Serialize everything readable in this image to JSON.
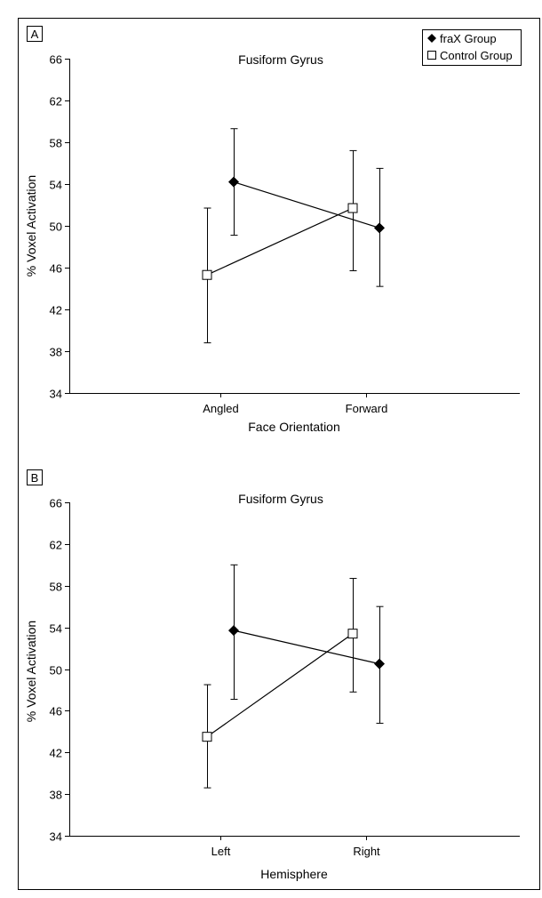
{
  "legend": {
    "placement": "top-right",
    "entries": [
      {
        "label": "fraX Group",
        "marker": "filled-diamond"
      },
      {
        "label": "Control Group",
        "marker": "open-square"
      }
    ]
  },
  "chart_data": [
    {
      "type": "line",
      "panel_label": "A",
      "title": "Fusiform Gyrus",
      "xlabel": "Face Orientation",
      "ylabel": "% Voxel Activation",
      "categories": [
        "Angled",
        "Forward"
      ],
      "ylim": [
        34,
        66
      ],
      "yticks": [
        34,
        38,
        42,
        46,
        50,
        54,
        58,
        62,
        66
      ],
      "grid": false,
      "series": [
        {
          "name": "fraX Group",
          "values": [
            54.2,
            49.8
          ],
          "error_low": [
            49.1,
            44.2
          ],
          "error_high": [
            59.3,
            55.5
          ],
          "marker": "filled-diamond"
        },
        {
          "name": "Control Group",
          "values": [
            45.3,
            51.7
          ],
          "error_low": [
            38.8,
            45.7
          ],
          "error_high": [
            51.7,
            57.2
          ],
          "marker": "open-square"
        }
      ]
    },
    {
      "type": "line",
      "panel_label": "B",
      "title": "Fusiform Gyrus",
      "xlabel": "Hemisphere",
      "ylabel": "% Voxel Activation",
      "categories": [
        "Left",
        "Right"
      ],
      "ylim": [
        34,
        66
      ],
      "yticks": [
        34,
        38,
        42,
        46,
        50,
        54,
        58,
        62,
        66
      ],
      "grid": false,
      "series": [
        {
          "name": "fraX Group",
          "values": [
            53.7,
            50.5
          ],
          "error_low": [
            47.1,
            44.8
          ],
          "error_high": [
            60.0,
            56.0
          ],
          "marker": "filled-diamond"
        },
        {
          "name": "Control Group",
          "values": [
            43.5,
            53.4
          ],
          "error_low": [
            38.6,
            47.8
          ],
          "error_high": [
            48.5,
            58.7
          ],
          "marker": "open-square"
        }
      ]
    }
  ]
}
